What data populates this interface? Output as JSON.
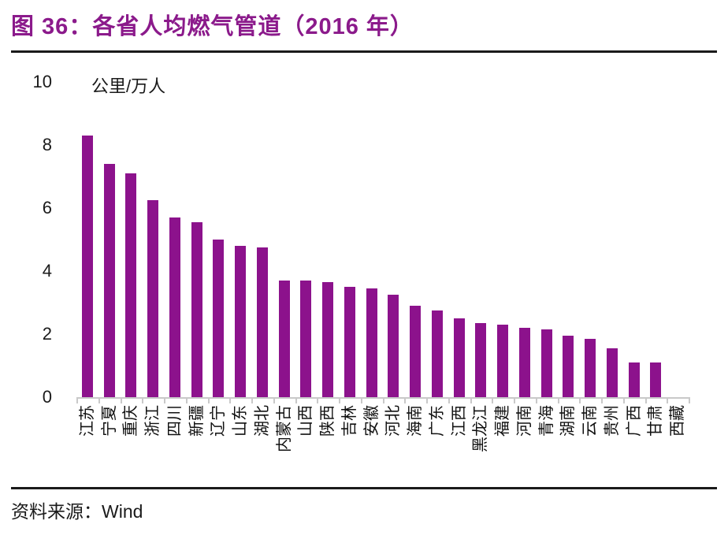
{
  "figure": {
    "title": "图 36：各省人均燃气管道（2016 年）",
    "source_label": "资料来源：Wind"
  },
  "colors": {
    "title": "#8B1A8B",
    "bar": "#8C128C",
    "axis": "#C9C9C9",
    "rule": "#1A1A1A"
  },
  "chart_data": {
    "type": "bar",
    "title": "各省人均燃气管道（2016 年）",
    "unit_label": "公里/万人",
    "xlabel": "",
    "ylabel": "公里/万人",
    "ylim": [
      0,
      10
    ],
    "yticks": [
      0,
      2,
      4,
      6,
      8,
      10
    ],
    "grid": false,
    "legend": false,
    "categories": [
      "江苏",
      "宁夏",
      "重庆",
      "浙江",
      "四川",
      "新疆",
      "辽宁",
      "山东",
      "湖北",
      "内蒙古",
      "山西",
      "陕西",
      "吉林",
      "安徽",
      "河北",
      "海南",
      "广东",
      "江西",
      "黑龙江",
      "福建",
      "河南",
      "青海",
      "湖南",
      "云南",
      "贵州",
      "广西",
      "甘肃",
      "西藏"
    ],
    "values": [
      8.3,
      7.4,
      7.1,
      6.25,
      5.7,
      5.55,
      5.0,
      4.8,
      4.75,
      3.7,
      3.7,
      3.65,
      3.5,
      3.45,
      3.25,
      2.9,
      2.75,
      2.5,
      2.35,
      2.3,
      2.2,
      2.15,
      1.95,
      1.85,
      1.55,
      1.1,
      1.1,
      0
    ]
  }
}
